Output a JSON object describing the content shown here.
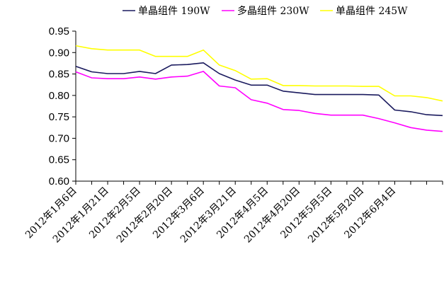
{
  "chart_data": {
    "type": "line",
    "title": "",
    "xlabel": "",
    "ylabel": "",
    "ylim": [
      0.6,
      0.95
    ],
    "yticks": [
      "0.60",
      "0.65",
      "0.70",
      "0.75",
      "0.80",
      "0.85",
      "0.90",
      "0.95"
    ],
    "x_tick_labels": [
      "2012年1月6日",
      "2012年1月21日",
      "2012年2月5日",
      "2012年2月20日",
      "2012年3月6日",
      "2012年3月21日",
      "2012年4月5日",
      "2012年4月20日",
      "2012年5月5日",
      "2012年5月20日",
      "2012年6月4日"
    ],
    "grid": false,
    "legend_position": "top",
    "series": [
      {
        "name": "单晶组件 190W",
        "color": "#1a1a5e",
        "values": [
          0.868,
          0.855,
          0.851,
          0.851,
          0.856,
          0.851,
          0.871,
          0.872,
          0.876,
          0.851,
          0.836,
          0.824,
          0.824,
          0.81,
          0.806,
          0.802,
          0.802,
          0.802,
          0.802,
          0.801,
          0.766,
          0.762,
          0.755,
          0.753
        ]
      },
      {
        "name": "多晶组件 230W",
        "color": "#ff00ff",
        "values": [
          0.855,
          0.841,
          0.839,
          0.839,
          0.843,
          0.838,
          0.843,
          0.845,
          0.856,
          0.822,
          0.818,
          0.79,
          0.782,
          0.767,
          0.765,
          0.758,
          0.754,
          0.754,
          0.754,
          0.746,
          0.736,
          0.725,
          0.719,
          0.716
        ]
      },
      {
        "name": "单晶组件 245W",
        "color": "#ffff00",
        "values": [
          0.916,
          0.909,
          0.906,
          0.906,
          0.906,
          0.891,
          0.891,
          0.891,
          0.906,
          0.871,
          0.858,
          0.838,
          0.839,
          0.823,
          0.823,
          0.822,
          0.822,
          0.822,
          0.821,
          0.821,
          0.799,
          0.799,
          0.795,
          0.787
        ]
      }
    ]
  }
}
